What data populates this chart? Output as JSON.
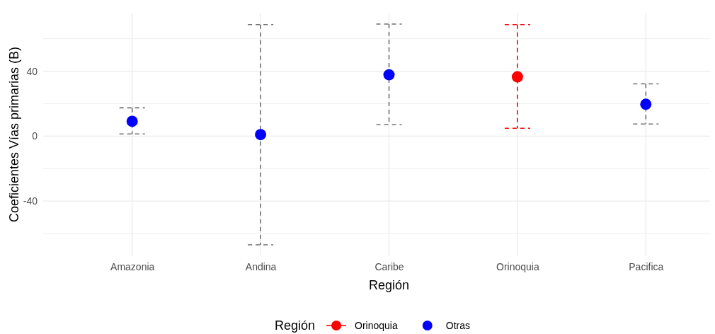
{
  "chart_data": {
    "type": "scatter",
    "xlabel": "Región",
    "ylabel": "Coeficientes Vías primarias (B)",
    "legend_title": "Región",
    "categories": [
      "Amazonia",
      "Andina",
      "Caribe",
      "Orinoquia",
      "Pacifica"
    ],
    "series": [
      {
        "name": "Orinoquia",
        "color": "#ff0000",
        "values": [
          null,
          null,
          null,
          36.5,
          null
        ],
        "errors": [
          null,
          null,
          null,
          [
            4.8,
            68.7
          ],
          null
        ]
      },
      {
        "name": "Otras",
        "color": "#0000ff",
        "values": [
          9.1,
          0.9,
          37.8,
          null,
          19.6
        ],
        "errors": [
          [
            1.3,
            17.4
          ],
          [
            -67,
            68.7
          ],
          [
            7,
            69
          ],
          null,
          [
            7.4,
            32.2
          ]
        ]
      }
    ],
    "ylim": [
      -74,
      76
    ],
    "yticks": [
      {
        "value": -60,
        "label": null
      },
      -40,
      {
        "value": -20,
        "label": null
      },
      0,
      {
        "value": 20,
        "label": null
      },
      40,
      {
        "value": 60,
        "label": null
      }
    ],
    "grid": true,
    "legend": "bottom",
    "marker": "circle",
    "line_style": "dashed"
  }
}
